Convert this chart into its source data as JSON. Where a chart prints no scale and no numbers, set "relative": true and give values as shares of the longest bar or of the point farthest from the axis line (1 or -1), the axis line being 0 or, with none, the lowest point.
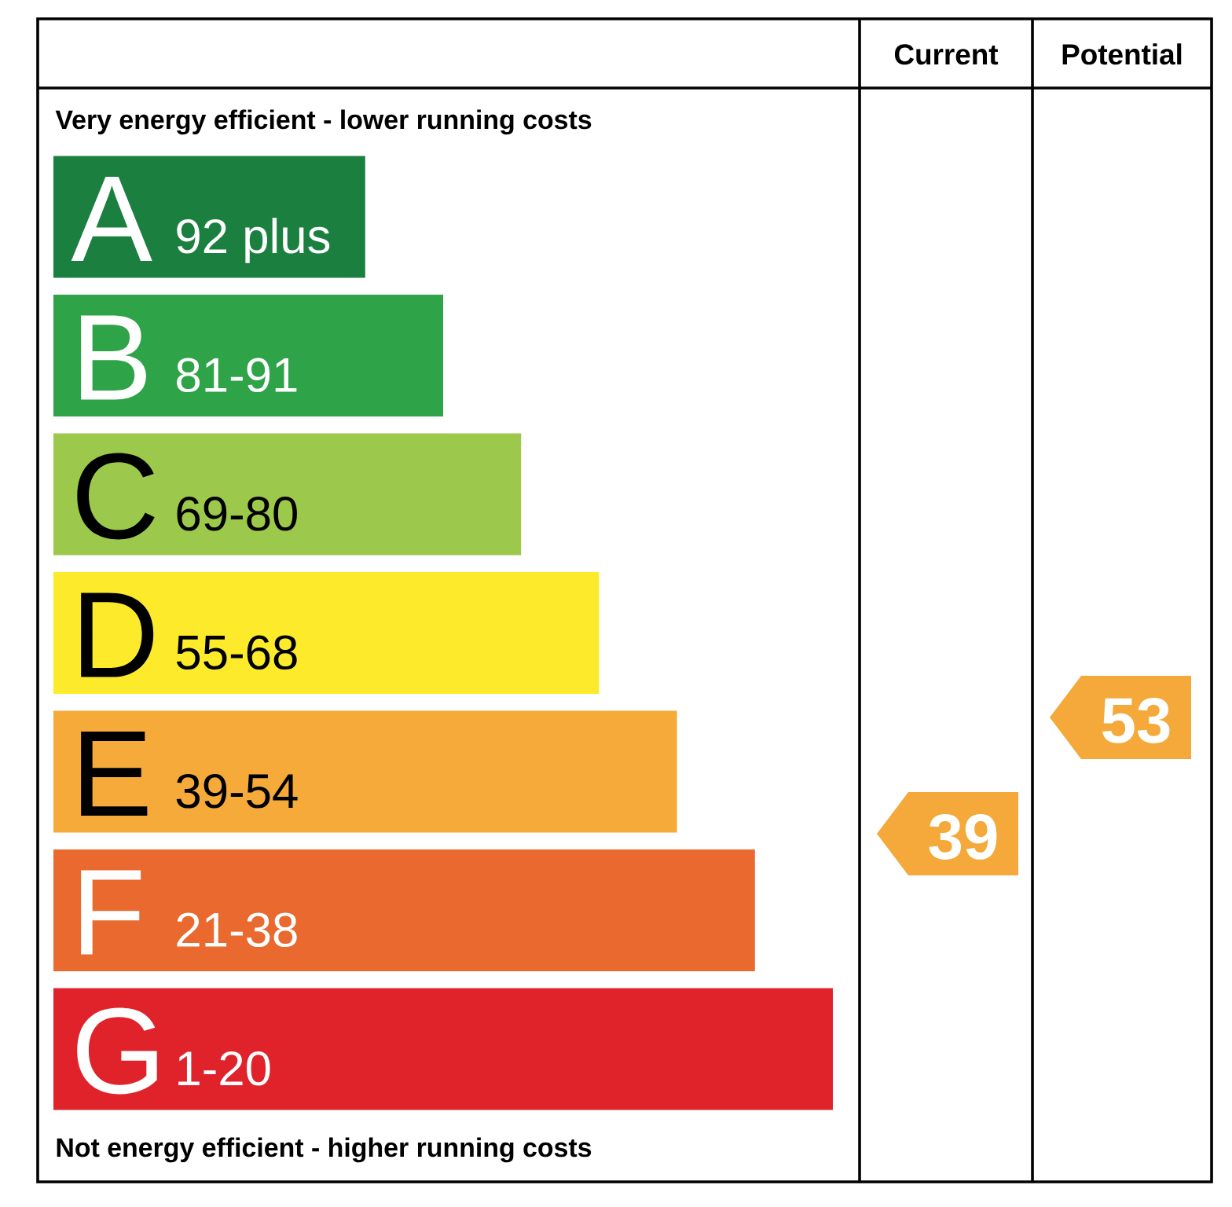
{
  "chart_data": [
    {
      "type": "bar",
      "orientation": "horizontal",
      "relative": true,
      "title": "Very energy efficient - lower running costs",
      "categories": [
        "A",
        "B",
        "C",
        "D",
        "E",
        "F",
        "G"
      ],
      "values": [
        0.4,
        0.5,
        0.6,
        0.7,
        0.8,
        0.9,
        1
      ],
      "colors": [
        "#1b7f3f",
        "#2ea348",
        "#9cc84b",
        "#fdeb2b",
        "#f6aa39",
        "#e9692f",
        "#e0222b"
      ],
      "annotations": [
        {
          "text": "92 plus",
          "y": "A"
        },
        {
          "text": "81-91",
          "y": "B"
        },
        {
          "text": "69-80",
          "y": "C"
        },
        {
          "text": "55-68",
          "y": "D"
        },
        {
          "text": "39-54",
          "y": "E"
        },
        {
          "text": "21-38",
          "y": "F"
        },
        {
          "text": "1-20",
          "y": "G"
        },
        "Not energy efficient - higher running costs"
      ]
    },
    {
      "type": "other",
      "title": "Current",
      "values": [
        39
      ],
      "data_labels": true,
      "color": "#f4a93a"
    },
    {
      "type": "other",
      "title": "Potential",
      "values": [
        53
      ],
      "data_labels": true,
      "color": "#f4a93a"
    }
  ]
}
